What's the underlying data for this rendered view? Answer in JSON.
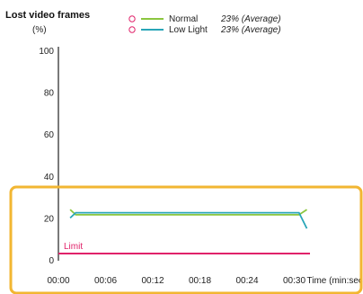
{
  "chart_data": {
    "type": "line",
    "title": "Lost video frames",
    "ylabel": "(%)",
    "xlabel": "Time (min:sec)",
    "ylim": [
      0,
      100
    ],
    "xlim": [
      0,
      32
    ],
    "y_ticks": [
      0,
      20,
      40,
      60,
      80,
      100
    ],
    "x_ticks": [
      0,
      6,
      12,
      18,
      24,
      30
    ],
    "x_tick_labels": [
      "00:00",
      "00:06",
      "00:12",
      "00:18",
      "00:24",
      "00:30"
    ],
    "grid": false,
    "legend_position": "top-right",
    "series": [
      {
        "name": "Normal",
        "summary": "23% (Average)",
        "color": "#8cc63f",
        "x": [
          1.5,
          2.2,
          30.6,
          31.6
        ],
        "y": [
          24,
          21.5,
          21.5,
          24
        ]
      },
      {
        "name": "Low Light",
        "summary": "23% (Average)",
        "color": "#29a6b8",
        "x": [
          1.5,
          2.2,
          30.6,
          31.6
        ],
        "y": [
          20,
          22.5,
          22.5,
          15
        ]
      }
    ],
    "limit": {
      "label": "Limit",
      "value": 3,
      "color": "#e0226a"
    },
    "highlight_color": "#f2b632"
  }
}
